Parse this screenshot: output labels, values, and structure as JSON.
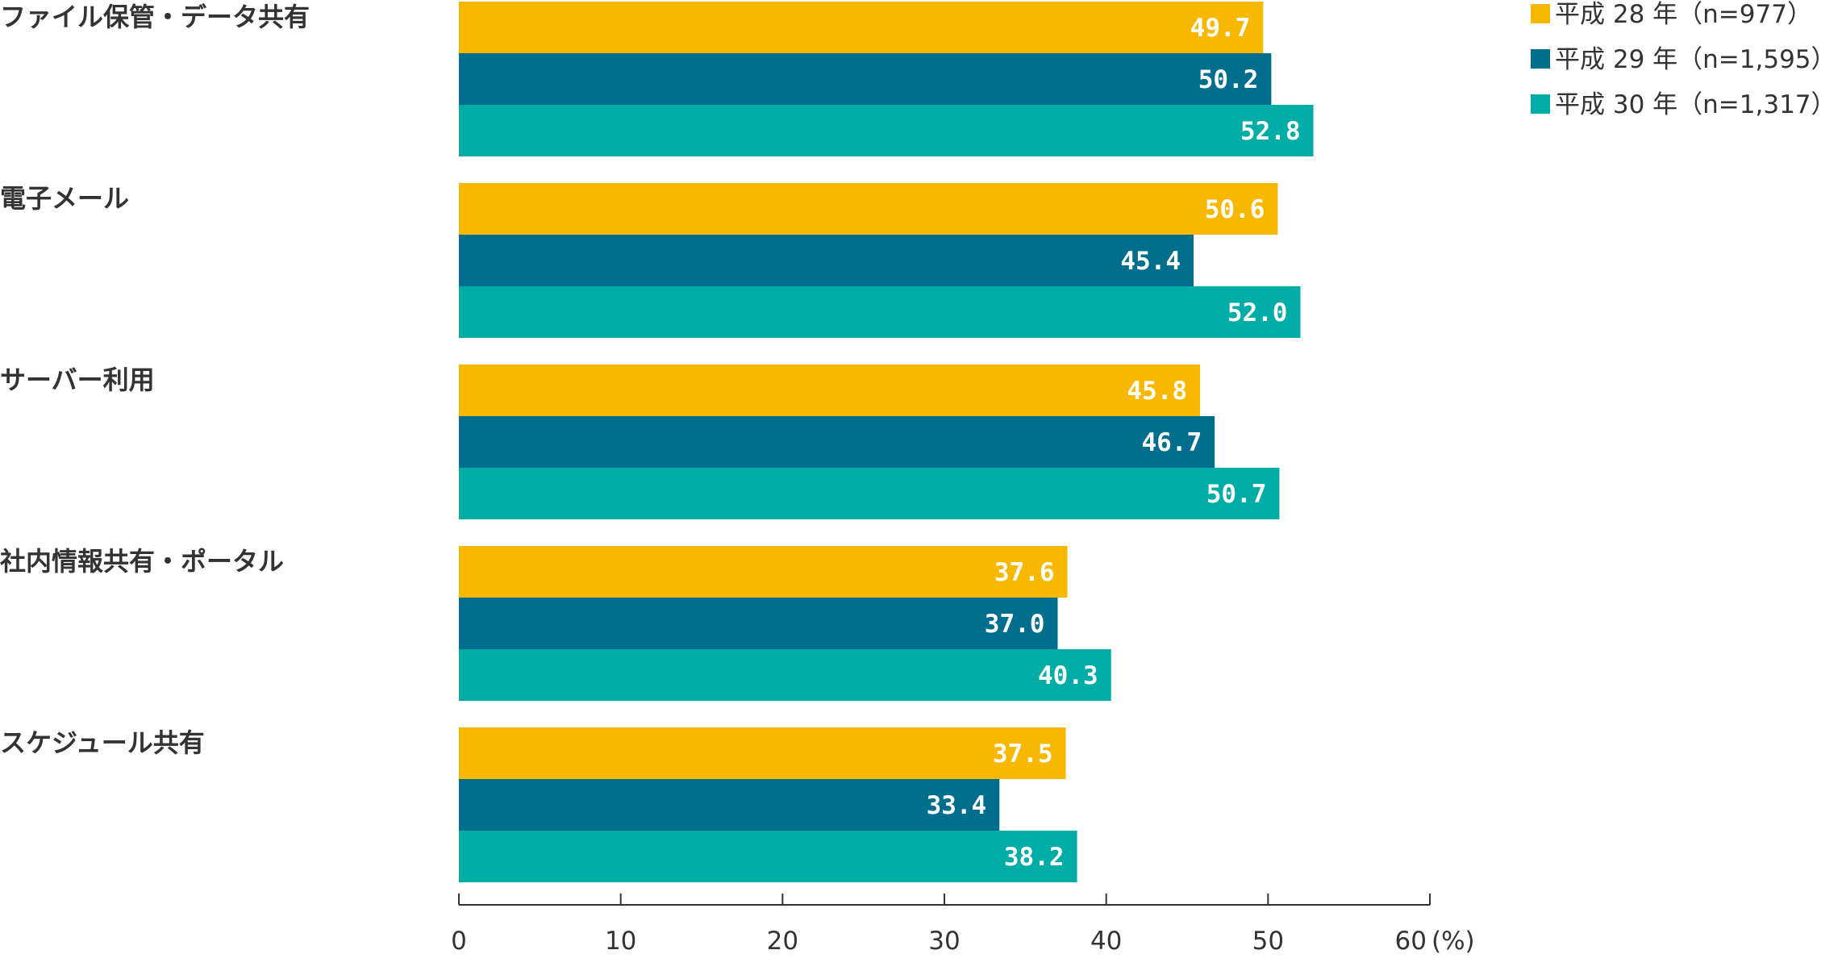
{
  "chart_data": {
    "type": "bar",
    "orientation": "horizontal",
    "categories": [
      "ファイル保管・データ共有",
      "電子メール",
      "サーバー利用",
      "社内情報共有・ポータル",
      "スケジュール共有"
    ],
    "series": [
      {
        "name": "平成 28 年（n=977）",
        "color": "#F9B800",
        "values": [
          49.7,
          50.6,
          45.8,
          37.6,
          37.5
        ],
        "labels": [
          "49.7",
          "50.6",
          "45.8",
          "37.6",
          "37.5"
        ]
      },
      {
        "name": "平成 29 年（n=1,595）",
        "color": "#006E8C",
        "values": [
          50.2,
          45.4,
          46.7,
          37.0,
          33.4
        ],
        "labels": [
          "50.2",
          "45.4",
          "46.7",
          "37.0",
          "33.4"
        ]
      },
      {
        "name": "平成 30 年（n=1,317）",
        "color": "#00ADA6",
        "values": [
          52.8,
          52.0,
          50.7,
          40.3,
          38.2
        ],
        "labels": [
          "52.8",
          "52.0",
          "50.7",
          "40.3",
          "38.2"
        ]
      }
    ],
    "xlim": [
      0,
      60
    ],
    "xticks": [
      "0",
      "10",
      "20",
      "30",
      "40",
      "50",
      "60"
    ],
    "xunit": "(%)",
    "legend_position": "top-right",
    "title": "",
    "xlabel": "",
    "ylabel": "",
    "grid": false
  }
}
